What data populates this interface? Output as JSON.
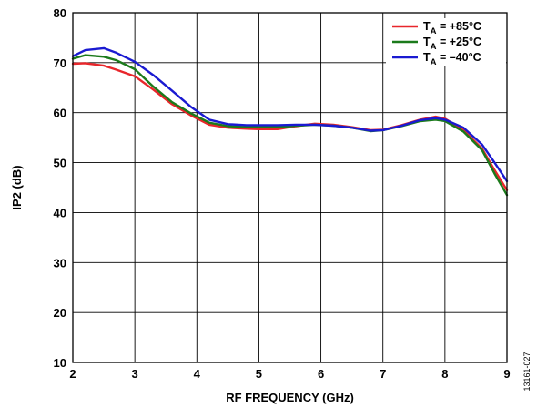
{
  "chart_data": {
    "type": "line",
    "title": "",
    "xlabel": "RF FREQUENCY (GHz)",
    "ylabel": "IP2 (dB)",
    "xlim": [
      2,
      9
    ],
    "ylim": [
      10,
      80
    ],
    "xticks": [
      2,
      3,
      4,
      5,
      6,
      7,
      8,
      9
    ],
    "yticks": [
      10,
      20,
      30,
      40,
      50,
      60,
      70,
      80
    ],
    "grid": true,
    "legend_position": "top-right",
    "series": [
      {
        "name": "T_A = +85°C",
        "legend_main": "T",
        "legend_sub": "A",
        "legend_rest": " = +85°C",
        "color": "#e8262b",
        "x": [
          2.0,
          2.2,
          2.5,
          2.7,
          3.0,
          3.3,
          3.6,
          3.9,
          4.2,
          4.5,
          4.8,
          5.0,
          5.3,
          5.6,
          5.9,
          6.2,
          6.5,
          6.8,
          7.0,
          7.3,
          7.6,
          7.85,
          8.0,
          8.3,
          8.6,
          8.8,
          9.0
        ],
        "y": [
          69.8,
          69.9,
          69.4,
          68.6,
          67.3,
          64.6,
          61.7,
          59.5,
          57.6,
          57.0,
          56.8,
          56.7,
          56.7,
          57.3,
          57.8,
          57.6,
          57.1,
          56.5,
          56.6,
          57.5,
          58.6,
          59.2,
          58.8,
          56.5,
          52.8,
          48.5,
          44.5
        ]
      },
      {
        "name": "T_A = +25°C",
        "legend_main": "T",
        "legend_sub": "A",
        "legend_rest": " = +25°C",
        "color": "#1b7a1b",
        "x": [
          2.0,
          2.2,
          2.5,
          2.7,
          3.0,
          3.3,
          3.6,
          3.9,
          4.2,
          4.5,
          4.8,
          5.0,
          5.3,
          5.6,
          5.9,
          6.2,
          6.5,
          6.8,
          7.0,
          7.3,
          7.6,
          7.85,
          8.0,
          8.3,
          8.6,
          8.8,
          9.0
        ],
        "y": [
          70.8,
          71.5,
          71.2,
          70.5,
          68.7,
          65.2,
          62.1,
          59.9,
          58.0,
          57.3,
          57.1,
          57.1,
          57.1,
          57.4,
          57.6,
          57.4,
          57.0,
          56.3,
          56.5,
          57.3,
          58.3,
          58.6,
          58.3,
          56.2,
          52.5,
          47.8,
          43.5
        ]
      },
      {
        "name": "T_A = –40°C",
        "legend_main": "T",
        "legend_sub": "A",
        "legend_rest": " = –40°C",
        "color": "#1a1ad1",
        "x": [
          2.0,
          2.2,
          2.5,
          2.7,
          3.0,
          3.3,
          3.6,
          3.9,
          4.2,
          4.5,
          4.8,
          5.0,
          5.3,
          5.6,
          5.9,
          6.2,
          6.5,
          6.8,
          7.0,
          7.3,
          7.6,
          7.85,
          8.0,
          8.3,
          8.6,
          8.8,
          9.0
        ],
        "y": [
          71.3,
          72.5,
          72.9,
          72.0,
          70.2,
          67.5,
          64.4,
          61.2,
          58.6,
          57.7,
          57.5,
          57.5,
          57.5,
          57.6,
          57.6,
          57.4,
          57.0,
          56.4,
          56.5,
          57.4,
          58.5,
          58.9,
          58.6,
          57.0,
          53.6,
          50.0,
          46.3
        ]
      }
    ]
  },
  "figure_id": "13161-027"
}
